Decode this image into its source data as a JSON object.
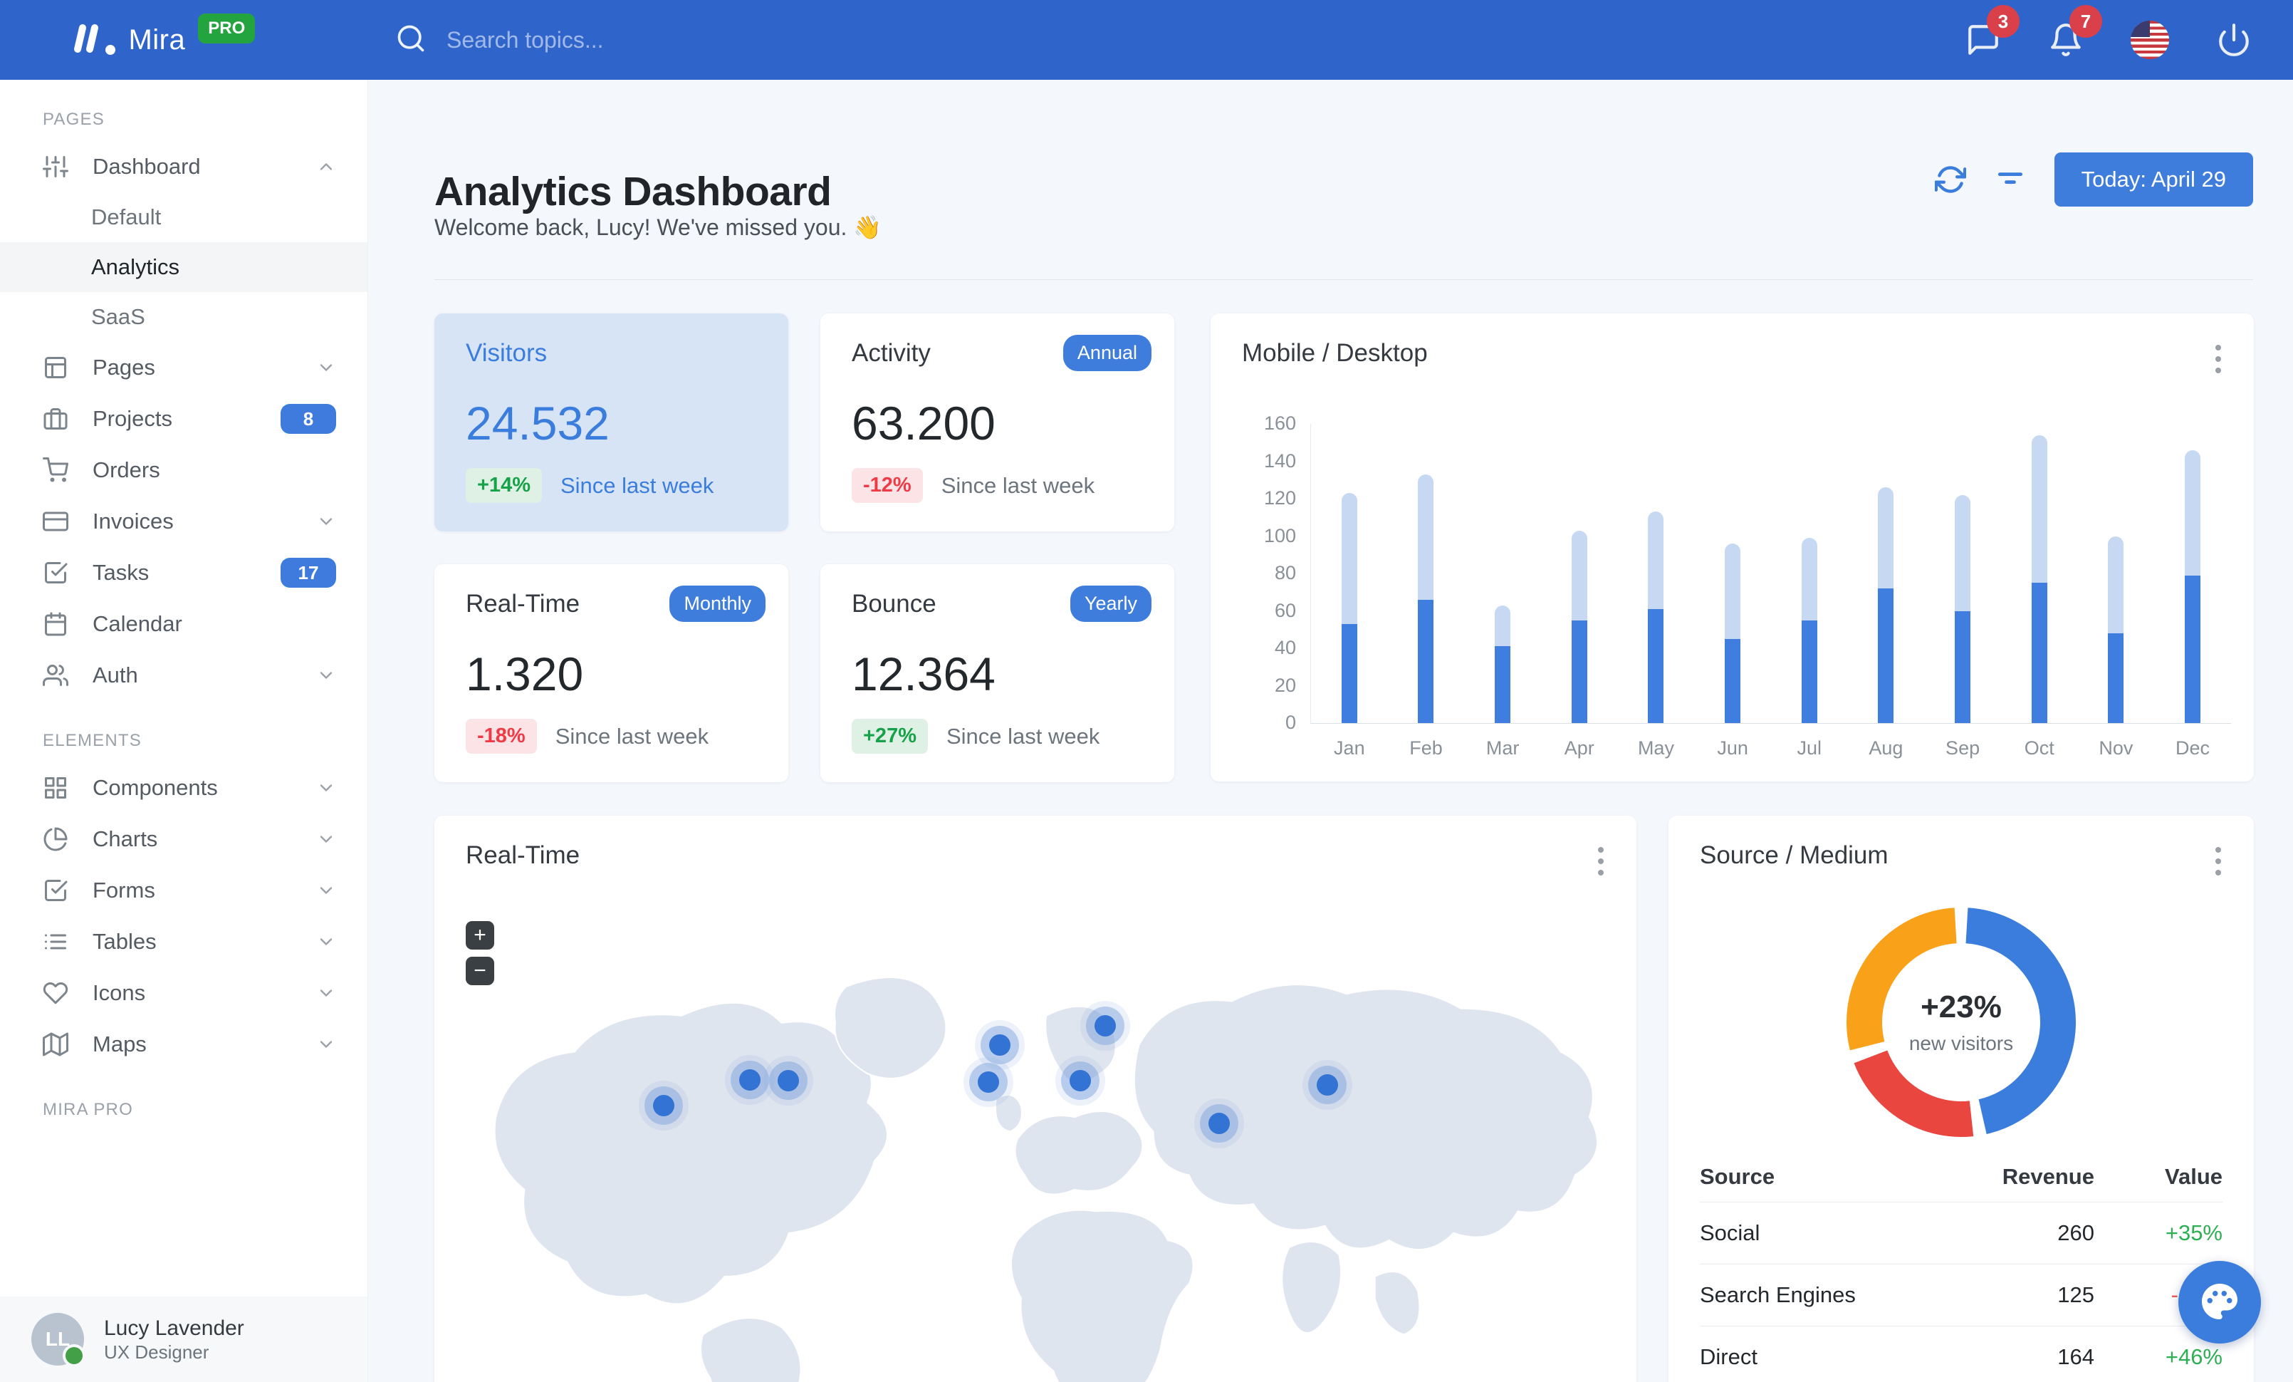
{
  "navbar": {
    "brand": "Mira",
    "brand_badge": "PRO",
    "search_placeholder": "Search topics...",
    "messages_badge": "3",
    "notifications_badge": "7"
  },
  "sidebar": {
    "sections": [
      {
        "label": "PAGES",
        "items": [
          {
            "label": "Dashboard",
            "icon": "sliders-icon",
            "expanded": true,
            "children": [
              {
                "label": "Default",
                "active": false
              },
              {
                "label": "Analytics",
                "active": true
              },
              {
                "label": "SaaS",
                "active": false
              }
            ]
          },
          {
            "label": "Pages",
            "icon": "layout-icon",
            "chevron": "down"
          },
          {
            "label": "Projects",
            "icon": "briefcase-icon",
            "badge": "8"
          },
          {
            "label": "Orders",
            "icon": "cart-icon"
          },
          {
            "label": "Invoices",
            "icon": "credit-card-icon",
            "chevron": "down"
          },
          {
            "label": "Tasks",
            "icon": "check-square-icon",
            "badge": "17"
          },
          {
            "label": "Calendar",
            "icon": "calendar-icon"
          },
          {
            "label": "Auth",
            "icon": "users-icon",
            "chevron": "down"
          }
        ]
      },
      {
        "label": "ELEMENTS",
        "items": [
          {
            "label": "Components",
            "icon": "grid-icon",
            "chevron": "down"
          },
          {
            "label": "Charts",
            "icon": "pie-chart-icon",
            "chevron": "down"
          },
          {
            "label": "Forms",
            "icon": "check-square-icon",
            "chevron": "down"
          },
          {
            "label": "Tables",
            "icon": "list-icon",
            "chevron": "down"
          },
          {
            "label": "Icons",
            "icon": "heart-icon",
            "chevron": "down"
          },
          {
            "label": "Maps",
            "icon": "map-icon",
            "chevron": "down"
          }
        ]
      },
      {
        "label": "MIRA PRO",
        "items": []
      }
    ],
    "user": {
      "name": "Lucy Lavender",
      "role": "UX Designer",
      "initials": "LL"
    }
  },
  "header": {
    "title": "Analytics Dashboard",
    "subtitle": "Welcome back, Lucy! We've missed you. 👋",
    "today_button": "Today: April 29"
  },
  "stats": [
    {
      "title": "Visitors",
      "value": "24.532",
      "delta": "+14%",
      "delta_type": "positive",
      "caption": "Since last week"
    },
    {
      "title": "Activity",
      "badge": "Annual",
      "value": "63.200",
      "delta": "-12%",
      "delta_type": "negative",
      "caption": "Since last week"
    },
    {
      "title": "Real-Time",
      "badge": "Monthly",
      "value": "1.320",
      "delta": "-18%",
      "delta_type": "negative",
      "caption": "Since last week"
    },
    {
      "title": "Bounce",
      "badge": "Yearly",
      "value": "12.364",
      "delta": "+27%",
      "delta_type": "positive",
      "caption": "Since last week"
    }
  ],
  "chart_data": {
    "type": "bar",
    "stacked": true,
    "title": "Mobile / Desktop",
    "categories": [
      "Jan",
      "Feb",
      "Mar",
      "Apr",
      "May",
      "Jun",
      "Jul",
      "Aug",
      "Sep",
      "Oct",
      "Nov",
      "Dec"
    ],
    "series": [
      {
        "name": "Desktop",
        "color": "#3f7dde",
        "values": [
          53,
          66,
          41,
          55,
          61,
          45,
          55,
          72,
          60,
          75,
          48,
          79
        ]
      },
      {
        "name": "Mobile",
        "color": "#c7d8f3",
        "values": [
          70,
          67,
          22,
          48,
          52,
          51,
          44,
          54,
          62,
          79,
          52,
          67
        ]
      }
    ],
    "totals": [
      123,
      133,
      63,
      103,
      113,
      96,
      99,
      126,
      122,
      154,
      100,
      146
    ],
    "xlabel": "",
    "ylabel": "",
    "ylim": [
      0,
      160
    ],
    "yticks": [
      0,
      20,
      40,
      60,
      80,
      100,
      120,
      140,
      160
    ],
    "grid": false,
    "legend": "none"
  },
  "realtime_map": {
    "title": "Real-Time",
    "zoom_in": "+",
    "zoom_out": "−",
    "markers": [
      {
        "x": 322,
        "y": 407
      },
      {
        "x": 443,
        "y": 371
      },
      {
        "x": 497,
        "y": 372
      },
      {
        "x": 794,
        "y": 322
      },
      {
        "x": 778,
        "y": 374
      },
      {
        "x": 942,
        "y": 295
      },
      {
        "x": 907,
        "y": 372
      },
      {
        "x": 1102,
        "y": 432
      },
      {
        "x": 1254,
        "y": 378
      }
    ]
  },
  "source_medium": {
    "title": "Source / Medium",
    "donut": {
      "type": "pie",
      "center_value": "+23%",
      "center_label": "new visitors",
      "segments": [
        {
          "label": "Social",
          "value": 260,
          "color": "#3b7ddd"
        },
        {
          "label": "Search Engines",
          "value": 125,
          "color": "#e8463f"
        },
        {
          "label": "Direct",
          "value": 164,
          "color": "#f9a119"
        }
      ]
    },
    "table": {
      "headers": [
        "Source",
        "Revenue",
        "Value"
      ],
      "rows": [
        {
          "source": "Social",
          "revenue": "260",
          "value": "+35%",
          "value_type": "positive"
        },
        {
          "source": "Search Engines",
          "revenue": "125",
          "value": "-12%",
          "value_type": "negative"
        },
        {
          "source": "Direct",
          "revenue": "164",
          "value": "+46%",
          "value_type": "positive"
        }
      ]
    }
  },
  "colors": {
    "navbar": "#2f65cb",
    "primary": "#3b7ddd",
    "badge_red": "#d9404a",
    "positive_green": "#17a24a",
    "negative_red": "#ee3b45",
    "bar_dark": "#3f7dde",
    "bar_light": "#c7d8f3",
    "map_land": "#dee5ee",
    "visitors_card_bg": "#d7e4f6"
  }
}
